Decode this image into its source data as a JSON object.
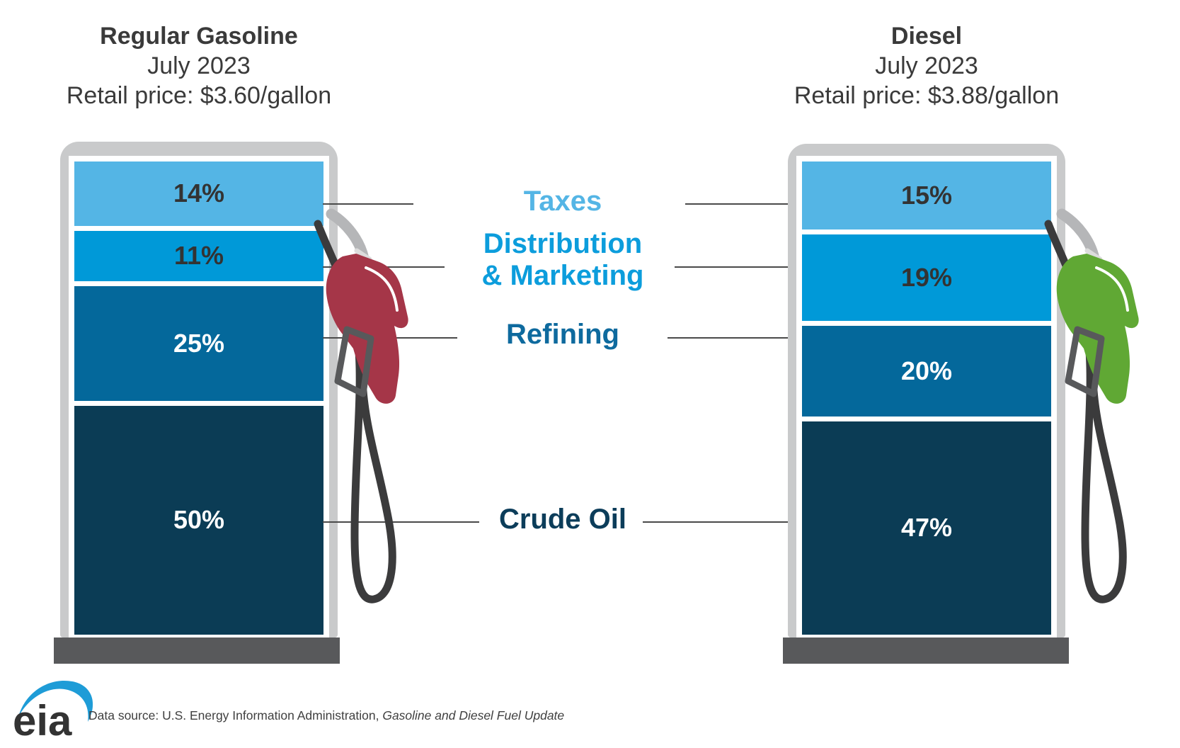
{
  "chart_data": {
    "type": "bar",
    "subtype": "stacked-percentage-pump-infographic",
    "categories": [
      "Taxes",
      "Distribution & Marketing",
      "Refining",
      "Crude Oil"
    ],
    "category_colors": [
      "#54B5E5",
      "#0099D8",
      "#04689B",
      "#0B3C55"
    ],
    "unit": "%",
    "series": [
      {
        "name": "Regular Gasoline",
        "period": "July 2023",
        "retail_price": "$3.60/gallon",
        "values": [
          14,
          11,
          25,
          50
        ]
      },
      {
        "name": "Diesel",
        "period": "July 2023",
        "retail_price": "$3.88/gallon",
        "values": [
          15,
          19,
          20,
          47
        ]
      }
    ],
    "legend_position": "center-between-bars",
    "grid": false
  },
  "pumps": [
    {
      "title": "Regular Gasoline",
      "subtitle": "July 2023",
      "price": "Retail price: $3.60/gallon",
      "nozzle_color": "#A53648",
      "segments": [
        {
          "value": "14%",
          "pct": 14,
          "color": "#54B5E5",
          "text": "#333333"
        },
        {
          "value": "11%",
          "pct": 11,
          "color": "#0099D8",
          "text": "#333333"
        },
        {
          "value": "25%",
          "pct": 25,
          "color": "#04689B",
          "text": "#FFFFFF"
        },
        {
          "value": "50%",
          "pct": 50,
          "color": "#0B3C55",
          "text": "#FFFFFF"
        }
      ]
    },
    {
      "title": "Diesel",
      "subtitle": "July 2023",
      "price": "Retail price: $3.88/gallon",
      "nozzle_color": "#60A834",
      "segments": [
        {
          "value": "15%",
          "pct": 15,
          "color": "#54B5E5",
          "text": "#333333"
        },
        {
          "value": "19%",
          "pct": 19,
          "color": "#0099D8",
          "text": "#333333"
        },
        {
          "value": "20%",
          "pct": 20,
          "color": "#04689B",
          "text": "#FFFFFF"
        },
        {
          "value": "47%",
          "pct": 47,
          "color": "#0B3C55",
          "text": "#FFFFFF"
        }
      ]
    }
  ],
  "center_labels": [
    {
      "lines": [
        "Taxes"
      ],
      "color": "#54B5E5"
    },
    {
      "lines": [
        "Distribution",
        "& Marketing"
      ],
      "color": "#0C9DDC"
    },
    {
      "lines": [
        "Refining"
      ],
      "color": "#0E6A9E"
    },
    {
      "lines": [
        "Crude Oil"
      ],
      "color": "#0C3D5A"
    }
  ],
  "footer": {
    "logo": "eia",
    "logo_swoosh_color": "#1E9CD7",
    "logo_text_color": "#333333",
    "source_regular": "Data source: U.S. Energy Information Administration, ",
    "source_italic": "Gasoline and Diesel Fuel Update"
  }
}
